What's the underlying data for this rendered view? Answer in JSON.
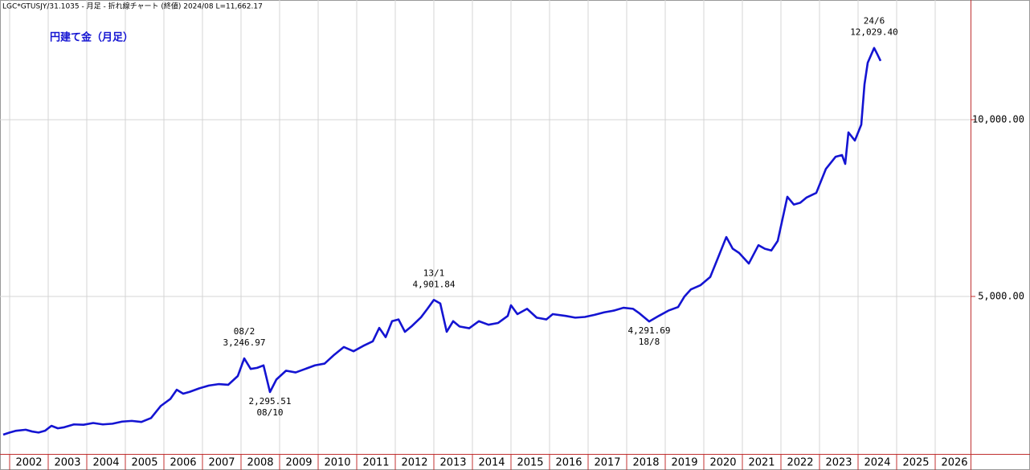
{
  "chart_data": {
    "type": "line",
    "header": "LGC*GTUSJY/31.1035 - 月足 - 折れ線チャート (終値)  2024/08  L=11,662.17",
    "title": "円建て金（月足）",
    "color": "#1414d2",
    "grid": true,
    "xlim": [
      "2001-10",
      "2026-12"
    ],
    "xticks": [
      2002,
      2003,
      2004,
      2005,
      2006,
      2007,
      2008,
      2009,
      2010,
      2011,
      2012,
      2013,
      2014,
      2015,
      2016,
      2017,
      2018,
      2019,
      2020,
      2021,
      2022,
      2023,
      2024,
      2025,
      2026
    ],
    "ylim": [
      545,
      13386
    ],
    "yticks": [
      {
        "value": 5000,
        "label": "5,000.00"
      },
      {
        "value": 10000,
        "label": "10,000.00"
      }
    ],
    "x": [
      "2001-11",
      "2002-01",
      "2002-03",
      "2002-06",
      "2002-08",
      "2002-10",
      "2002-12",
      "2003-02",
      "2003-04",
      "2003-06",
      "2003-09",
      "2003-12",
      "2004-03",
      "2004-06",
      "2004-09",
      "2004-12",
      "2005-03",
      "2005-06",
      "2005-09",
      "2005-12",
      "2006-03",
      "2006-05",
      "2006-07",
      "2006-09",
      "2006-12",
      "2007-03",
      "2007-06",
      "2007-09",
      "2007-12",
      "2008-02",
      "2008-04",
      "2008-06",
      "2008-08",
      "2008-10",
      "2008-12",
      "2009-03",
      "2009-06",
      "2009-09",
      "2009-12",
      "2010-03",
      "2010-06",
      "2010-09",
      "2010-12",
      "2011-03",
      "2011-06",
      "2011-08",
      "2011-10",
      "2011-12",
      "2012-02",
      "2012-04",
      "2012-06",
      "2012-09",
      "2012-11",
      "2013-01",
      "2013-03",
      "2013-05",
      "2013-07",
      "2013-09",
      "2013-12",
      "2014-03",
      "2014-06",
      "2014-09",
      "2014-12",
      "2015-01",
      "2015-03",
      "2015-06",
      "2015-09",
      "2015-12",
      "2016-02",
      "2016-06",
      "2016-09",
      "2016-12",
      "2017-03",
      "2017-06",
      "2017-09",
      "2017-12",
      "2018-03",
      "2018-05",
      "2018-08",
      "2018-11",
      "2019-02",
      "2019-05",
      "2019-07",
      "2019-09",
      "2019-12",
      "2020-03",
      "2020-05",
      "2020-08",
      "2020-10",
      "2020-12",
      "2021-03",
      "2021-06",
      "2021-08",
      "2021-10",
      "2021-12",
      "2022-03",
      "2022-05",
      "2022-07",
      "2022-09",
      "2022-12",
      "2023-03",
      "2023-06",
      "2023-08",
      "2023-09",
      "2023-10",
      "2023-12",
      "2024-02",
      "2024-03",
      "2024-04",
      "2024-06",
      "2024-07",
      "2024-08"
    ],
    "values": [
      1090,
      1150,
      1200,
      1230,
      1180,
      1150,
      1200,
      1340,
      1270,
      1300,
      1380,
      1370,
      1420,
      1380,
      1400,
      1460,
      1480,
      1450,
      1560,
      1900,
      2100,
      2360,
      2250,
      2300,
      2400,
      2480,
      2520,
      2500,
      2750,
      3246.97,
      2950,
      2980,
      3050,
      2295.51,
      2650,
      2900,
      2850,
      2950,
      3050,
      3100,
      3350,
      3570,
      3450,
      3600,
      3730,
      4110,
      3850,
      4300,
      4350,
      4000,
      4150,
      4410,
      4650,
      4901.84,
      4800,
      4000,
      4300,
      4150,
      4100,
      4300,
      4200,
      4250,
      4450,
      4750,
      4500,
      4650,
      4400,
      4350,
      4500,
      4450,
      4400,
      4420,
      4480,
      4550,
      4600,
      4680,
      4650,
      4520,
      4291.69,
      4450,
      4600,
      4700,
      5000,
      5200,
      5320,
      5550,
      6000,
      6680,
      6350,
      6230,
      5930,
      6450,
      6350,
      6300,
      6570,
      7820,
      7600,
      7650,
      7800,
      7930,
      8610,
      8950,
      9000,
      8750,
      9640,
      9410,
      9860,
      11000,
      11610,
      12029.4,
      11850,
      11662.17
    ],
    "annotations": [
      {
        "x": "2008-02",
        "date": "08/2",
        "label": "3,246.97"
      },
      {
        "x": "2008-10",
        "date": "08/10",
        "label": "2,295.51"
      },
      {
        "x": "2013-01",
        "date": "13/1",
        "label": "4,901.84"
      },
      {
        "x": "2018-08",
        "date": "18/8",
        "label": "4,291.69"
      },
      {
        "x": "2024-06",
        "date": "24/6",
        "label": "12,029.40"
      }
    ]
  }
}
